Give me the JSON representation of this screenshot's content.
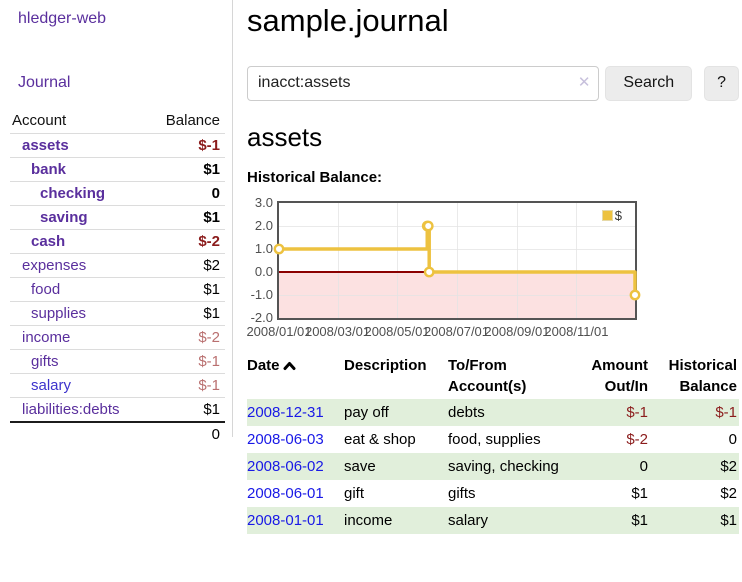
{
  "app": {
    "brand": "hledger-web",
    "nav": {
      "journal": "Journal"
    }
  },
  "sidebar": {
    "header": {
      "account": "Account",
      "balance": "Balance"
    },
    "accounts": [
      {
        "name": "assets",
        "balance": "$-1",
        "indent": 1,
        "bold": true,
        "tone": "neg-strong"
      },
      {
        "name": "bank",
        "balance": "$1",
        "indent": 2,
        "bold": true,
        "tone": "normal"
      },
      {
        "name": "checking",
        "balance": "0",
        "indent": 3,
        "bold": true,
        "tone": "normal"
      },
      {
        "name": "saving",
        "balance": "$1",
        "indent": 3,
        "bold": true,
        "tone": "normal"
      },
      {
        "name": "cash",
        "balance": "$-2",
        "indent": 2,
        "bold": true,
        "tone": "neg-strong"
      },
      {
        "name": "expenses",
        "balance": "$2",
        "indent": 1,
        "bold": false,
        "tone": "normal"
      },
      {
        "name": "food",
        "balance": "$1",
        "indent": 2,
        "bold": false,
        "tone": "normal"
      },
      {
        "name": "supplies",
        "balance": "$1",
        "indent": 2,
        "bold": false,
        "tone": "normal"
      },
      {
        "name": "income",
        "balance": "$-2",
        "indent": 1,
        "bold": false,
        "tone": "neg-soft"
      },
      {
        "name": "gifts",
        "balance": "$-1",
        "indent": 2,
        "bold": false,
        "tone": "neg-soft"
      },
      {
        "name": "salary",
        "balance": "$-1",
        "indent": 2,
        "bold": false,
        "tone": "neg-soft",
        "link_style": "blue"
      },
      {
        "name": "liabilities:debts",
        "balance": "$1",
        "indent": 1,
        "bold": false,
        "tone": "normal"
      }
    ],
    "total": "0"
  },
  "main": {
    "title": "sample.journal",
    "search": {
      "value": "inacct:assets",
      "clear_icon": "✕",
      "search_button": "Search",
      "help_button": "?"
    },
    "account_title": "assets",
    "chart_heading": "Historical Balance:"
  },
  "chart_data": {
    "type": "line",
    "step": true,
    "title": "Historical Balance",
    "series": [
      {
        "name": "$",
        "color": "#EDC240",
        "points": [
          [
            "2008-01-01",
            1
          ],
          [
            "2008-06-01",
            2
          ],
          [
            "2008-06-02",
            2
          ],
          [
            "2008-06-03",
            0
          ],
          [
            "2008-12-31",
            -1
          ]
        ]
      }
    ],
    "xlim": [
      "2008-01-01",
      "2008-12-31"
    ],
    "ylim": [
      -2,
      3
    ],
    "y_ticks": [
      "3.0",
      "2.0",
      "1.0",
      "0.0",
      "-1.0",
      "-2.0"
    ],
    "x_ticks": [
      "2008/01/01",
      "2008/03/01",
      "2008/05/01",
      "2008/07/01",
      "2008/09/01",
      "2008/11/01"
    ],
    "legend": {
      "label": "$",
      "position": "top-right"
    },
    "grid": true,
    "colors": {
      "negative_region": "#f9dcdc",
      "zero_line": "#8b0000",
      "grid_line": "#e3e3e3",
      "plot_border": "#545454"
    }
  },
  "transactions": {
    "headers": {
      "date": "Date",
      "description": "Description",
      "tofrom_1": "To/From",
      "tofrom_2": "Account(s)",
      "amount_1": "Amount",
      "amount_2": "Out/In",
      "balance_1": "Historical",
      "balance_2": "Balance"
    },
    "rows": [
      {
        "date": "2008-12-31",
        "description": "pay off",
        "accounts": "debts",
        "amount": "$-1",
        "balance": "$-1",
        "amount_tone": "neg",
        "balance_tone": "neg"
      },
      {
        "date": "2008-06-03",
        "description": "eat & shop",
        "accounts": "food, supplies",
        "amount": "$-2",
        "balance": "0",
        "amount_tone": "neg",
        "balance_tone": "normal"
      },
      {
        "date": "2008-06-02",
        "description": "save",
        "accounts": "saving, checking",
        "amount": "0",
        "balance": "$2",
        "amount_tone": "normal",
        "balance_tone": "normal"
      },
      {
        "date": "2008-06-01",
        "description": "gift",
        "accounts": "gifts",
        "amount": "$1",
        "balance": "$2",
        "amount_tone": "normal",
        "balance_tone": "normal"
      },
      {
        "date": "2008-01-01",
        "description": "income",
        "accounts": "salary",
        "amount": "$1",
        "balance": "$1",
        "amount_tone": "normal",
        "balance_tone": "normal"
      }
    ]
  }
}
